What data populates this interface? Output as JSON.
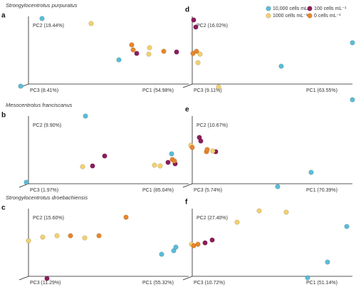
{
  "chart_data": [
    {
      "type": "scatter",
      "panel": "a",
      "title": "Strongylocentrotus purpuratus",
      "pc1_label": "PC1 (54.98%)",
      "pc2_label": "PC2 (19.44%)",
      "pc3_label": "PC3 (8.41%)",
      "xlim": [
        -20,
        115
      ],
      "ylim": [
        -25,
        100
      ],
      "series": [
        {
          "color": "#5bbcd6",
          "x": [
            9.5,
            -5.5,
            63.5
          ],
          "values": [
            92,
            -3,
            34
          ]
        },
        {
          "color": "#8c1c5c",
          "x": [
            76,
            104
          ],
          "values": [
            43,
            45
          ]
        },
        {
          "color": "#f4d06f",
          "x": [
            44,
            85,
            84.5
          ],
          "values": [
            85,
            51,
            42
          ]
        },
        {
          "color": "#e8862a",
          "x": [
            72.5,
            73.5,
            95
          ],
          "values": [
            55,
            48,
            46
          ]
        }
      ]
    },
    {
      "type": "scatter",
      "panel": "b",
      "title": "Mesocentrotus franciscanus",
      "pc1_label": "PC1 (85.04%)",
      "pc2_label": "PC2 (9.90%)",
      "pc3_label": "PC3 (1.97%)",
      "xlim": [
        -20,
        115
      ],
      "ylim": [
        -25,
        100
      ],
      "series": [
        {
          "color": "#5bbcd6",
          "x": [
            40,
            100.5,
            -1.5
          ],
          "values": [
            95,
            42,
            2
          ]
        },
        {
          "color": "#8c1c5c",
          "x": [
            53.5,
            45,
            98,
            103
          ],
          "values": [
            39,
            25,
            30,
            28
          ]
        },
        {
          "color": "#f4d06f",
          "x": [
            38,
            88.5,
            92.5
          ],
          "values": [
            24,
            26,
            25
          ]
        },
        {
          "color": "#e8862a",
          "x": [
            101,
            102.5
          ],
          "values": [
            34,
            32
          ]
        }
      ]
    },
    {
      "type": "scatter",
      "panel": "c",
      "title": "Strongylocentrotus droebachiensis",
      "pc1_label": "PC1 (55.32%)",
      "pc2_label": "PC2 (15.60%)",
      "pc3_label": "PC3 (11.29%)",
      "xlim": [
        -20,
        115
      ],
      "ylim": [
        -25,
        100
      ],
      "series": [
        {
          "color": "#5bbcd6",
          "x": [
            93.5,
            102,
            103.5
          ],
          "values": [
            31,
            36,
            41
          ]
        },
        {
          "color": "#8c1c5c",
          "x": [
            13
          ],
          "values": [
            -3
          ]
        },
        {
          "color": "#f4d06f",
          "x": [
            0,
            10,
            20,
            39.5
          ],
          "values": [
            50,
            55,
            57,
            54
          ]
        },
        {
          "color": "#e8862a",
          "x": [
            29.5,
            49.5,
            68.5
          ],
          "values": [
            57,
            57,
            83
          ]
        }
      ]
    },
    {
      "type": "scatter",
      "panel": "d",
      "pc1_label": "PC1 (63.55%)",
      "pc2_label": "PC2 (16.02%)",
      "pc3_label": "PC3 (9.11%)",
      "xlim": [
        -20,
        115
      ],
      "ylim": [
        -25,
        100
      ],
      "series": [
        {
          "name": "10,000 cells mL⁻¹",
          "color": "#5bbcd6",
          "x": [
            62.5,
            112.5,
            112.5
          ],
          "values": [
            25,
            58,
            -22
          ]
        },
        {
          "name": "100 cells mL⁻¹",
          "color": "#8c1c5c",
          "x": [
            1,
            2.5
          ],
          "values": [
            90,
            80
          ]
        },
        {
          "name": "1000 cells mL⁻¹",
          "color": "#f4d06f",
          "x": [
            5.5,
            4,
            18.5
          ],
          "values": [
            42,
            30,
            -4
          ]
        },
        {
          "name": "0 cells mL⁻¹",
          "color": "#e8862a",
          "x": [
            0.5,
            3
          ],
          "values": [
            43,
            46
          ]
        }
      ]
    },
    {
      "type": "scatter",
      "panel": "e",
      "pc1_label": "PC1 (70.39%)",
      "pc2_label": "PC2 (10.67%)",
      "pc3_label": "PC3 (5.74%)",
      "xlim": [
        -20,
        115
      ],
      "ylim": [
        -25,
        100
      ],
      "series": [
        {
          "color": "#5bbcd6",
          "x": [
            83.5,
            60
          ],
          "values": [
            16,
            -4
          ]
        },
        {
          "color": "#8c1c5c",
          "x": [
            5,
            6,
            16.5
          ],
          "values": [
            65,
            60,
            45
          ]
        },
        {
          "color": "#f4d06f",
          "x": [
            -1,
            14.5
          ],
          "values": [
            54,
            46
          ]
        },
        {
          "color": "#e8862a",
          "x": [
            0,
            10,
            10.5
          ],
          "values": [
            51,
            45,
            48
          ]
        }
      ]
    },
    {
      "type": "scatter",
      "panel": "f",
      "pc1_label": "PC1 (51.14%)",
      "pc2_label": "PC2 (27.40%)",
      "pc3_label": "PC3 (10.72%)",
      "xlim": [
        -20,
        115
      ],
      "ylim": [
        -25,
        100
      ],
      "series": [
        {
          "color": "#5bbcd6",
          "x": [
            108.5,
            95,
            81
          ],
          "values": [
            70,
            20,
            -2
          ]
        },
        {
          "color": "#8c1c5c",
          "x": [
            14,
            9
          ],
          "values": [
            51,
            47
          ]
        },
        {
          "color": "#f4d06f",
          "x": [
            31.5,
            47,
            66,
            -0.5
          ],
          "values": [
            76,
            92,
            90,
            45
          ]
        },
        {
          "color": "#e8862a",
          "x": [
            1,
            4
          ],
          "values": [
            43,
            45
          ]
        }
      ]
    }
  ]
}
